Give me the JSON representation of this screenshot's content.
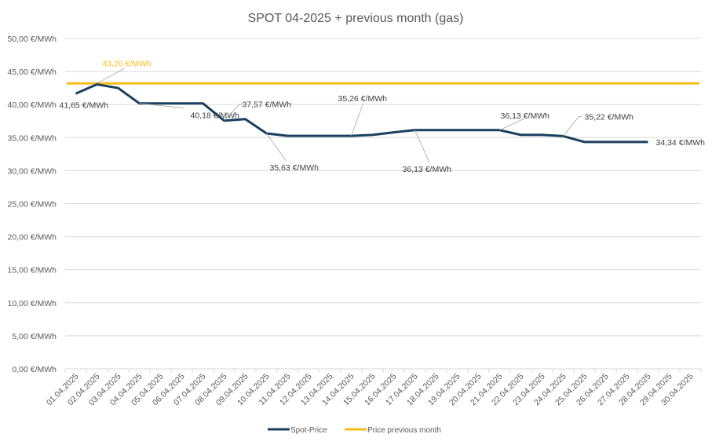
{
  "chart_data": {
    "type": "line",
    "title": "SPOT 04-2025 + previous month (gas)",
    "xlabel": "",
    "ylabel": "",
    "ylim": [
      0,
      50
    ],
    "ytick_step": 5,
    "yticks": [
      "0,00 €/MWh",
      "5,00 €/MWh",
      "10,00 €/MWh",
      "15,00 €/MWh",
      "20,00 €/MWh",
      "25,00 €/MWh",
      "30,00 €/MWh",
      "35,00 €/MWh",
      "40,00 €/MWh",
      "45,00 €/MWh",
      "50,00 €/MWh"
    ],
    "grid": true,
    "legend_position": "bottom",
    "categories": [
      "01.04.2025",
      "02.04.2025",
      "03.04.2025",
      "04.04.2025",
      "05.04.2025",
      "06.04.2025",
      "07.04.2025",
      "08.04.2025",
      "09.04.2025",
      "10.04.2025",
      "11.04.2025",
      "12.04.2025",
      "13.04.2025",
      "14.04.2025",
      "15.04.2025",
      "16.04.2025",
      "17.04.2025",
      "18.04.2025",
      "19.04.2025",
      "20.04.2025",
      "21.04.2025",
      "22.04.2025",
      "23.04.2025",
      "24.04.2025",
      "25.04.2025",
      "26.04.2025",
      "27.04.2025",
      "28.04.2025",
      "29.04.2025",
      "30.04.2025"
    ],
    "series": [
      {
        "name": "Spot-Price",
        "color": "#1B3F5E",
        "values": [
          41.65,
          43.05,
          42.5,
          40.18,
          40.18,
          40.18,
          40.18,
          37.57,
          37.8,
          35.63,
          35.26,
          35.26,
          35.26,
          35.26,
          35.4,
          35.8,
          36.13,
          36.13,
          36.13,
          36.13,
          36.13,
          35.4,
          35.4,
          35.22,
          34.34,
          34.34,
          34.34,
          34.34,
          null,
          null
        ]
      },
      {
        "name": "Price previous month",
        "color": "#F5BE1A",
        "values": [
          43.2,
          43.2,
          43.2,
          43.2,
          43.2,
          43.2,
          43.2,
          43.2,
          43.2,
          43.2,
          43.2,
          43.2,
          43.2,
          43.2,
          43.2,
          43.2,
          43.2,
          43.2,
          43.2,
          43.2,
          43.2,
          43.2,
          43.2,
          43.2,
          43.2,
          43.2,
          43.2,
          43.2,
          43.2,
          43.2
        ]
      }
    ],
    "annotations": [
      {
        "series": 1,
        "index": 1,
        "text": "43,20 €/MWh"
      },
      {
        "series": 0,
        "index": 0,
        "text": "41,65 €/MWh"
      },
      {
        "series": 0,
        "index": 3,
        "text": "40,18 €/MWh"
      },
      {
        "series": 0,
        "index": 7,
        "text": "37,57 €/MWh"
      },
      {
        "series": 0,
        "index": 9,
        "text": "35,63 €/MWh"
      },
      {
        "series": 0,
        "index": 13,
        "text": "35,26 €/MWh"
      },
      {
        "series": 0,
        "index": 16,
        "text": "36,13 €/MWh"
      },
      {
        "series": 0,
        "index": 20,
        "text": "36,13 €/MWh"
      },
      {
        "series": 0,
        "index": 23,
        "text": "35,22 €/MWh"
      },
      {
        "series": 0,
        "index": 27,
        "text": "34,34 €/MWh"
      }
    ]
  }
}
